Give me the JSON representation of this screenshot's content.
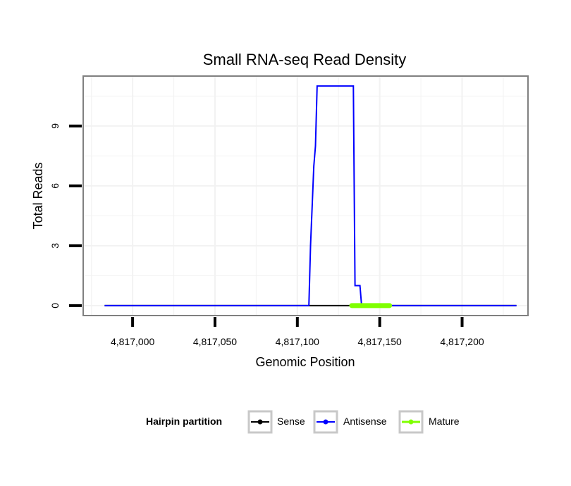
{
  "chart_data": {
    "type": "line",
    "title": "Small RNA-seq Read Density",
    "xlabel": "Genomic Position",
    "ylabel": "Total Reads",
    "xlim": [
      4816970,
      4817240
    ],
    "ylim": [
      -0.5,
      11.5
    ],
    "x_ticks": [
      4817000,
      4817050,
      4817100,
      4817150,
      4817200
    ],
    "x_tick_labels": [
      "4,817,000",
      "4,817,050",
      "4,817,100",
      "4,817,150",
      "4,817,200"
    ],
    "y_ticks": [
      0,
      3,
      6,
      9
    ],
    "y_tick_labels": [
      "0",
      "3",
      "6",
      "9"
    ],
    "grid": true,
    "legend": {
      "title": "Hairpin partition",
      "position": "bottom",
      "items": [
        "Sense",
        "Antisense",
        "Mature"
      ]
    },
    "series": [
      {
        "name": "Sense",
        "color": "#000000",
        "x": [
          4816983,
          4817233
        ],
        "values": [
          0,
          0
        ]
      },
      {
        "name": "Antisense",
        "color": "#0000ff",
        "x": [
          4816983,
          4817107,
          4817108,
          4817109,
          4817110,
          4817111,
          4817112,
          4817134,
          4817135,
          4817138,
          4817139,
          4817233
        ],
        "values": [
          0,
          0,
          3,
          5,
          7,
          8,
          11,
          11,
          1,
          1,
          0,
          0
        ]
      },
      {
        "name": "Mature",
        "color": "#7fff00",
        "x": [
          4817133,
          4817156
        ],
        "values": [
          0,
          0
        ]
      }
    ]
  }
}
